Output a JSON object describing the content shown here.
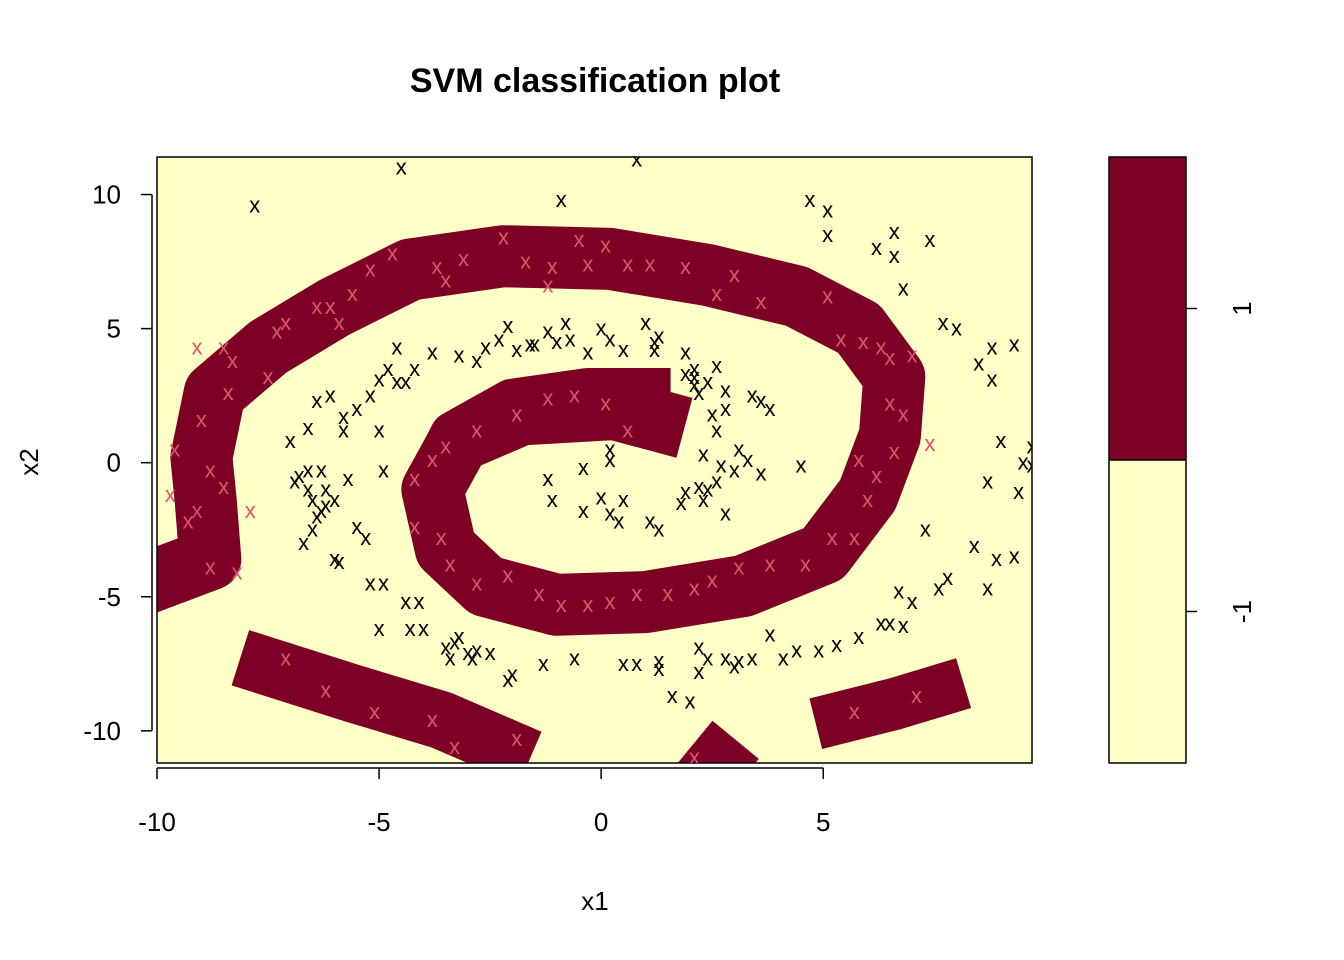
{
  "chart_data": {
    "type": "scatter",
    "title": "SVM classification plot",
    "xlabel": "x1",
    "ylabel": "x2",
    "xlim": [
      -10,
      9.7
    ],
    "ylim": [
      -11.2,
      11.4
    ],
    "x_ticks": [
      "-10",
      "-5",
      "0",
      "5"
    ],
    "y_ticks": [
      "-10",
      "-5",
      "0",
      "5",
      "10"
    ],
    "x_tick_values": [
      -10,
      -5,
      0,
      5
    ],
    "y_tick_values": [
      -10,
      -5,
      0,
      5,
      10
    ],
    "background": "shaded decision regions by predicted class",
    "legend": {
      "placement": "right",
      "labels": [
        "-1",
        "1"
      ],
      "colors": [
        "#FFFFC8",
        "#7D0025"
      ]
    },
    "class_colors": {
      "region_neg": "#FFFFC8",
      "region_pos": "#7D0025",
      "point_neg": "#000000",
      "point_pos": "#DF536B",
      "frame": "#000000"
    },
    "markers": {
      "support_vector": "x",
      "other": "o"
    },
    "series": [
      {
        "name": "-1",
        "color": "#000000",
        "points": [
          [
            -4.5,
            11.0
          ],
          [
            0.8,
            11.3
          ],
          [
            -7.8,
            9.6
          ],
          [
            -0.9,
            9.8
          ],
          [
            4.7,
            9.8
          ],
          [
            5.1,
            9.4
          ],
          [
            5.1,
            8.5
          ],
          [
            6.6,
            8.6
          ],
          [
            7.4,
            8.3
          ],
          [
            6.2,
            8.0
          ],
          [
            6.6,
            7.7
          ],
          [
            6.8,
            6.5
          ],
          [
            7.7,
            5.2
          ],
          [
            8.0,
            5.0
          ],
          [
            8.8,
            4.3
          ],
          [
            9.3,
            4.4
          ],
          [
            8.5,
            3.7
          ],
          [
            8.8,
            3.1
          ],
          [
            9.0,
            0.8
          ],
          [
            9.5,
            0.0
          ],
          [
            9.7,
            -0.1
          ],
          [
            9.7,
            0.6
          ],
          [
            8.7,
            -0.7
          ],
          [
            9.4,
            -1.1
          ],
          [
            7.3,
            -2.5
          ],
          [
            8.4,
            -3.1
          ],
          [
            8.9,
            -3.6
          ],
          [
            9.3,
            -3.5
          ],
          [
            7.8,
            -4.3
          ],
          [
            7.6,
            -4.7
          ],
          [
            8.7,
            -4.7
          ],
          [
            6.7,
            -4.8
          ],
          [
            7.0,
            -5.2
          ],
          [
            6.5,
            -6.0
          ],
          [
            6.3,
            -6.0
          ],
          [
            6.8,
            -6.1
          ],
          [
            5.8,
            -6.5
          ],
          [
            5.3,
            -6.8
          ],
          [
            4.9,
            -7.0
          ],
          [
            4.4,
            -7.0
          ],
          [
            4.1,
            -7.3
          ],
          [
            3.8,
            -6.4
          ],
          [
            3.1,
            -7.4
          ],
          [
            2.8,
            -7.3
          ],
          [
            3.0,
            -7.6
          ],
          [
            3.4,
            -7.3
          ],
          [
            2.2,
            -6.9
          ],
          [
            2.4,
            -7.3
          ],
          [
            2.2,
            -7.8
          ],
          [
            1.6,
            -8.7
          ],
          [
            2.0,
            -8.9
          ],
          [
            0.5,
            -7.5
          ],
          [
            0.8,
            -7.5
          ],
          [
            1.3,
            -7.4
          ],
          [
            1.3,
            -7.7
          ],
          [
            -0.6,
            -7.3
          ],
          [
            -1.3,
            -7.5
          ],
          [
            -2.1,
            -8.1
          ],
          [
            -2.0,
            -7.9
          ],
          [
            -2.5,
            -7.1
          ],
          [
            -3.0,
            -7.1
          ],
          [
            -2.8,
            -7.0
          ],
          [
            -2.9,
            -7.3
          ],
          [
            -3.4,
            -7.3
          ],
          [
            -3.5,
            -6.9
          ],
          [
            -3.2,
            -6.5
          ],
          [
            -3.3,
            -6.7
          ],
          [
            -4.0,
            -6.2
          ],
          [
            -4.3,
            -6.2
          ],
          [
            -5.0,
            -6.2
          ],
          [
            -4.9,
            -4.5
          ],
          [
            -5.2,
            -4.5
          ],
          [
            -4.4,
            -5.2
          ],
          [
            -4.1,
            -5.2
          ],
          [
            -5.5,
            -2.4
          ],
          [
            -5.3,
            -2.8
          ],
          [
            -5.9,
            -3.7
          ],
          [
            -6.0,
            -3.6
          ],
          [
            -6.7,
            -3.0
          ],
          [
            -6.5,
            -2.5
          ],
          [
            -6.4,
            -2.0
          ],
          [
            -6.6,
            -1.0
          ],
          [
            -6.2,
            -1.0
          ],
          [
            -6.5,
            -1.4
          ],
          [
            -6.3,
            -1.8
          ],
          [
            -6.2,
            -1.6
          ],
          [
            -6.0,
            -1.4
          ],
          [
            -6.8,
            -0.5
          ],
          [
            -6.6,
            -0.3
          ],
          [
            -6.3,
            -0.3
          ],
          [
            -6.9,
            -0.7
          ],
          [
            -7.0,
            0.8
          ],
          [
            -6.6,
            1.3
          ],
          [
            -6.4,
            2.3
          ],
          [
            -6.1,
            2.5
          ],
          [
            -5.8,
            1.7
          ],
          [
            -5.8,
            1.2
          ],
          [
            -5.5,
            2.0
          ],
          [
            -5.2,
            2.5
          ],
          [
            -5.0,
            1.2
          ],
          [
            -5.0,
            3.1
          ],
          [
            -4.8,
            3.5
          ],
          [
            -4.6,
            3.0
          ],
          [
            -4.4,
            3.0
          ],
          [
            -4.6,
            4.3
          ],
          [
            -4.2,
            3.5
          ],
          [
            -3.8,
            4.1
          ],
          [
            -3.2,
            4.0
          ],
          [
            -2.8,
            3.8
          ],
          [
            -2.6,
            4.3
          ],
          [
            -2.3,
            4.6
          ],
          [
            -2.1,
            5.1
          ],
          [
            -1.9,
            4.2
          ],
          [
            -1.6,
            4.4
          ],
          [
            -1.5,
            4.4
          ],
          [
            -1.2,
            4.9
          ],
          [
            -1.0,
            4.5
          ],
          [
            -0.8,
            5.2
          ],
          [
            -0.7,
            4.6
          ],
          [
            -0.3,
            4.1
          ],
          [
            0.0,
            5.0
          ],
          [
            0.2,
            4.6
          ],
          [
            0.5,
            4.2
          ],
          [
            1.0,
            5.2
          ],
          [
            1.2,
            4.5
          ],
          [
            1.2,
            4.2
          ],
          [
            1.3,
            4.7
          ],
          [
            1.9,
            4.1
          ],
          [
            1.9,
            3.3
          ],
          [
            2.1,
            3.5
          ],
          [
            2.1,
            3.2
          ],
          [
            2.1,
            2.9
          ],
          [
            2.2,
            2.6
          ],
          [
            2.4,
            3.0
          ],
          [
            2.6,
            3.6
          ],
          [
            2.8,
            2.7
          ],
          [
            2.5,
            1.8
          ],
          [
            2.8,
            2.0
          ],
          [
            2.6,
            1.2
          ],
          [
            3.4,
            2.5
          ],
          [
            3.6,
            2.3
          ],
          [
            3.8,
            2.0
          ],
          [
            3.1,
            0.5
          ],
          [
            3.3,
            0.1
          ],
          [
            3.6,
            -0.4
          ],
          [
            3.0,
            -0.3
          ],
          [
            2.7,
            -0.1
          ],
          [
            2.3,
            0.3
          ],
          [
            4.5,
            -0.1
          ],
          [
            2.2,
            -0.9
          ],
          [
            2.4,
            -1.0
          ],
          [
            2.3,
            -1.4
          ],
          [
            2.8,
            -1.9
          ],
          [
            1.9,
            -1.1
          ],
          [
            1.8,
            -1.5
          ],
          [
            1.3,
            -2.5
          ],
          [
            1.1,
            -2.2
          ],
          [
            0.5,
            -1.4
          ],
          [
            0.0,
            -1.3
          ],
          [
            0.2,
            -1.9
          ],
          [
            0.4,
            -2.2
          ],
          [
            -0.4,
            -1.8
          ],
          [
            -1.1,
            -1.4
          ],
          [
            -1.2,
            -0.6
          ],
          [
            -0.4,
            -0.2
          ],
          [
            0.2,
            0.1
          ],
          [
            0.2,
            0.5
          ],
          [
            2.6,
            -0.7
          ],
          [
            -4.9,
            -0.3
          ],
          [
            -5.7,
            -0.6
          ]
        ]
      },
      {
        "name": "1",
        "color": "#DF536B",
        "points": [
          [
            -9.1,
            4.3
          ],
          [
            -8.5,
            4.3
          ],
          [
            -7.1,
            5.2
          ],
          [
            -7.3,
            4.9
          ],
          [
            -6.4,
            5.8
          ],
          [
            -6.1,
            5.8
          ],
          [
            -5.6,
            6.3
          ],
          [
            -5.9,
            5.2
          ],
          [
            -5.2,
            7.2
          ],
          [
            -4.7,
            7.8
          ],
          [
            -3.7,
            7.3
          ],
          [
            -3.5,
            6.8
          ],
          [
            -3.1,
            7.6
          ],
          [
            -2.2,
            8.4
          ],
          [
            -1.7,
            7.5
          ],
          [
            -1.1,
            7.3
          ],
          [
            -1.2,
            6.6
          ],
          [
            -0.5,
            8.3
          ],
          [
            -0.3,
            7.4
          ],
          [
            0.1,
            8.1
          ],
          [
            0.6,
            7.4
          ],
          [
            1.1,
            7.4
          ],
          [
            1.9,
            7.3
          ],
          [
            3.0,
            7.0
          ],
          [
            2.6,
            6.3
          ],
          [
            3.6,
            6.0
          ],
          [
            5.1,
            6.2
          ],
          [
            5.4,
            4.6
          ],
          [
            5.9,
            4.5
          ],
          [
            6.3,
            4.3
          ],
          [
            6.5,
            3.9
          ],
          [
            7.0,
            4.0
          ],
          [
            6.5,
            2.2
          ],
          [
            6.8,
            1.8
          ],
          [
            6.6,
            0.4
          ],
          [
            7.4,
            0.7
          ],
          [
            5.8,
            0.1
          ],
          [
            6.2,
            -0.5
          ],
          [
            6.0,
            -1.4
          ],
          [
            5.7,
            -2.8
          ],
          [
            5.2,
            -2.8
          ],
          [
            4.6,
            -3.8
          ],
          [
            3.8,
            -3.8
          ],
          [
            3.1,
            -3.9
          ],
          [
            2.5,
            -4.4
          ],
          [
            2.1,
            -4.7
          ],
          [
            1.5,
            -4.9
          ],
          [
            0.8,
            -4.9
          ],
          [
            0.2,
            -5.2
          ],
          [
            -0.3,
            -5.3
          ],
          [
            -0.9,
            -5.3
          ],
          [
            -1.4,
            -4.9
          ],
          [
            -2.1,
            -4.2
          ],
          [
            -2.8,
            -4.5
          ],
          [
            -3.4,
            -3.8
          ],
          [
            -3.6,
            -2.8
          ],
          [
            -4.2,
            -2.4
          ],
          [
            -4.2,
            -0.6
          ],
          [
            -3.8,
            0.1
          ],
          [
            -3.5,
            0.6
          ],
          [
            -2.8,
            1.2
          ],
          [
            -1.9,
            1.8
          ],
          [
            -1.2,
            2.4
          ],
          [
            -0.6,
            2.5
          ],
          [
            0.1,
            2.2
          ],
          [
            0.6,
            1.2
          ],
          [
            -9.0,
            1.6
          ],
          [
            -9.6,
            0.5
          ],
          [
            -9.7,
            -1.2
          ],
          [
            -9.1,
            -1.8
          ],
          [
            -8.5,
            -0.9
          ],
          [
            -8.8,
            -0.3
          ],
          [
            -8.8,
            -3.9
          ],
          [
            -8.2,
            -4.1
          ],
          [
            -7.1,
            -7.3
          ],
          [
            -6.2,
            -8.5
          ],
          [
            -5.1,
            -9.3
          ],
          [
            -3.8,
            -9.6
          ],
          [
            -3.3,
            -10.6
          ],
          [
            -1.9,
            -10.3
          ],
          [
            5.7,
            -9.3
          ],
          [
            7.1,
            -8.7
          ],
          [
            2.1,
            -11.0
          ],
          [
            -7.5,
            3.2
          ],
          [
            -8.3,
            3.8
          ],
          [
            -8.4,
            2.6
          ],
          [
            -9.3,
            -2.2
          ],
          [
            -7.9,
            -1.8
          ]
        ]
      }
    ]
  }
}
